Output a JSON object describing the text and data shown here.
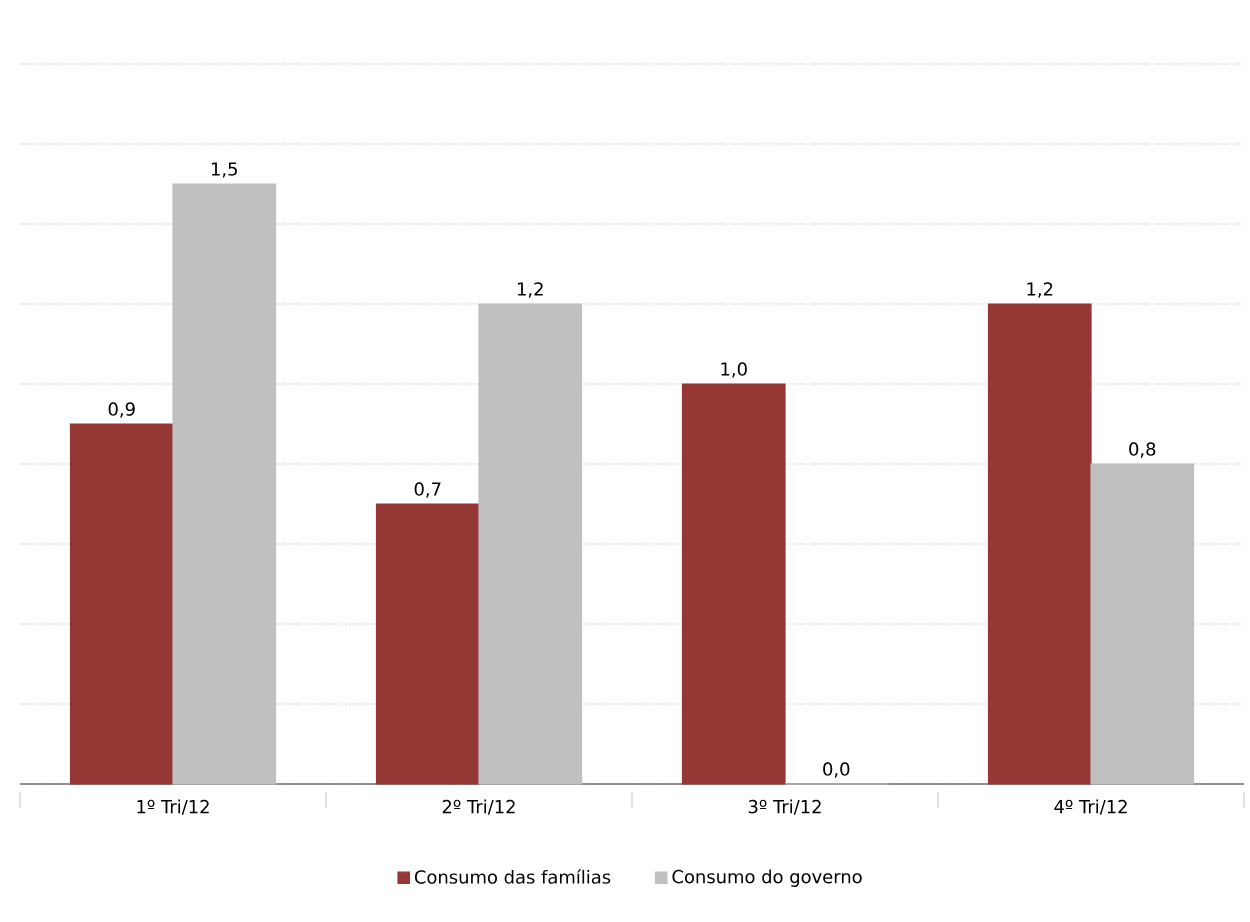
{
  "chart_data": {
    "type": "bar",
    "categories": [
      "1º Tri/12",
      "2º Tri/12",
      "3º Tri/12",
      "4º Tri/12"
    ],
    "series": [
      {
        "name": "Consumo das famílias",
        "color": "#953735",
        "values": [
          0.9,
          0.7,
          1.0,
          1.2
        ],
        "value_labels": [
          "0,9",
          "0,7",
          "1,0",
          "1,2"
        ]
      },
      {
        "name": "Consumo do governo",
        "color": "#bfbfbf",
        "values": [
          1.5,
          1.2,
          0.0,
          0.8
        ],
        "value_labels": [
          "1,5",
          "1,2",
          "0,0",
          "0,8"
        ]
      }
    ],
    "tick_labels": "x",
    "grid": "y",
    "legend": "bottom"
  }
}
